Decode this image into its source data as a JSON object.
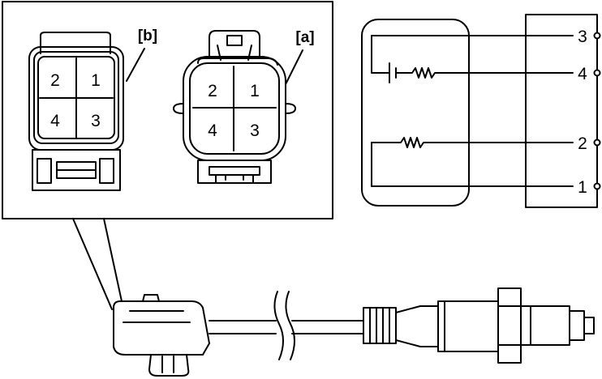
{
  "connector_b": {
    "label": "[b]",
    "pins": [
      "2",
      "1",
      "4",
      "3"
    ]
  },
  "connector_a": {
    "label": "[a]",
    "pins": [
      "2",
      "1",
      "4",
      "3"
    ]
  },
  "schematic": {
    "terminals": [
      "3",
      "4",
      "2",
      "1"
    ]
  }
}
